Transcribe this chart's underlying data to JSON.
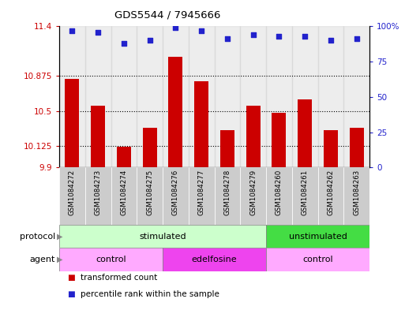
{
  "title": "GDS5544 / 7945666",
  "samples": [
    "GSM1084272",
    "GSM1084273",
    "GSM1084274",
    "GSM1084275",
    "GSM1084276",
    "GSM1084277",
    "GSM1084278",
    "GSM1084279",
    "GSM1084260",
    "GSM1084261",
    "GSM1084262",
    "GSM1084263"
  ],
  "bar_values": [
    10.84,
    10.56,
    10.12,
    10.32,
    11.08,
    10.82,
    10.3,
    10.56,
    10.48,
    10.62,
    10.3,
    10.32
  ],
  "dot_values": [
    97,
    96,
    88,
    90,
    99,
    97,
    91,
    94,
    93,
    93,
    90,
    91
  ],
  "ylim_left": [
    9.9,
    11.4
  ],
  "ylim_right": [
    0,
    100
  ],
  "yticks_left": [
    9.9,
    10.125,
    10.5,
    10.875,
    11.4
  ],
  "ytick_labels_left": [
    "9.9",
    "10.125",
    "10.5",
    "10.875",
    "11.4"
  ],
  "yticks_right": [
    0,
    25,
    50,
    75,
    100
  ],
  "ytick_labels_right": [
    "0",
    "25",
    "50",
    "75",
    "100%"
  ],
  "bar_color": "#cc0000",
  "dot_color": "#2222cc",
  "bar_bottom": 9.9,
  "protocol_groups": [
    {
      "label": "stimulated",
      "start": 0,
      "end": 8,
      "color": "#ccffcc"
    },
    {
      "label": "unstimulated",
      "start": 8,
      "end": 12,
      "color": "#44dd44"
    }
  ],
  "agent_groups": [
    {
      "label": "control",
      "start": 0,
      "end": 4,
      "color": "#ffaaff"
    },
    {
      "label": "edelfosine",
      "start": 4,
      "end": 8,
      "color": "#ee44ee"
    },
    {
      "label": "control",
      "start": 8,
      "end": 12,
      "color": "#ffaaff"
    }
  ],
  "legend_items": [
    {
      "label": "transformed count",
      "color": "#cc0000"
    },
    {
      "label": "percentile rank within the sample",
      "color": "#2222cc"
    }
  ],
  "protocol_label": "protocol",
  "agent_label": "agent",
  "tick_label_color_left": "#cc0000",
  "tick_label_color_right": "#2222cc",
  "sample_bg_color": "#cccccc",
  "grid_yticks": [
    10.125,
    10.5,
    10.875
  ]
}
